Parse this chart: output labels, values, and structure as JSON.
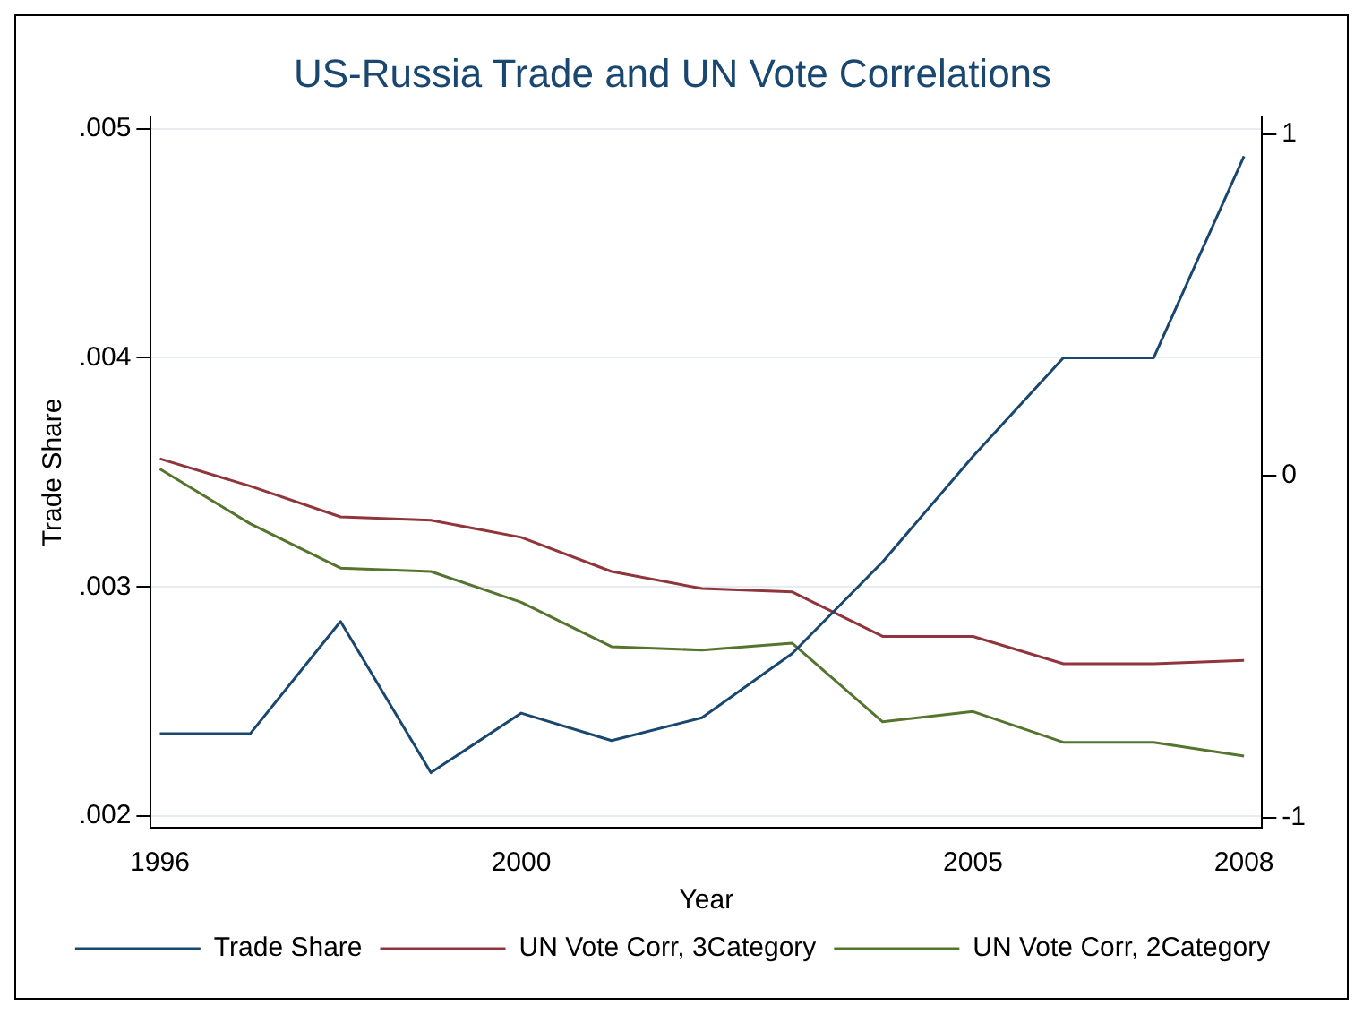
{
  "chart_data": {
    "type": "line",
    "title": "US-Russia Trade and UN Vote Correlations",
    "xlabel": "Year",
    "ylabel": "Trade Share",
    "x": [
      1996,
      1997,
      1998,
      1999,
      2000,
      2001,
      2002,
      2003,
      2004,
      2005,
      2006,
      2007,
      2008
    ],
    "series": [
      {
        "name": "Trade Share",
        "color": "#1a476f",
        "values": [
          0.00236,
          0.00236,
          0.00285,
          0.00219,
          0.00245,
          0.00233,
          0.00243,
          0.00271,
          0.00311,
          0.00357,
          0.004,
          0.004,
          0.00488
        ]
      },
      {
        "name": "UN Vote Corr, 3Category",
        "color": "#90353b",
        "axis": "y2",
        "values": [
          0.05,
          -0.03,
          -0.12,
          -0.13,
          -0.18,
          -0.28,
          -0.33,
          -0.34,
          -0.47,
          -0.47,
          -0.55,
          -0.55,
          -0.54
        ]
      },
      {
        "name": "UN Vote Corr, 2Category",
        "color": "#55752f",
        "axis": "y2",
        "values": [
          0.02,
          -0.14,
          -0.27,
          -0.28,
          -0.37,
          -0.5,
          -0.51,
          -0.49,
          -0.72,
          -0.69,
          -0.78,
          -0.78,
          -0.82
        ]
      }
    ],
    "xlim": [
      1995.9,
      2008.2
    ],
    "xticks": [
      1996,
      2000,
      2005,
      2008
    ],
    "ylim": [
      0.00195,
      0.00505
    ],
    "yticks": [
      {
        "value": 0.002,
        "label": ".002"
      },
      {
        "value": 0.003,
        "label": ".003"
      },
      {
        "value": 0.004,
        "label": ".004"
      },
      {
        "value": 0.005,
        "label": ".005"
      }
    ],
    "y2lim": [
      -1.03,
      1.05
    ],
    "y2ticks": [
      -1,
      0,
      1
    ],
    "grid": "y",
    "legend": "bottom",
    "marker": "none",
    "line_style": "solid"
  }
}
